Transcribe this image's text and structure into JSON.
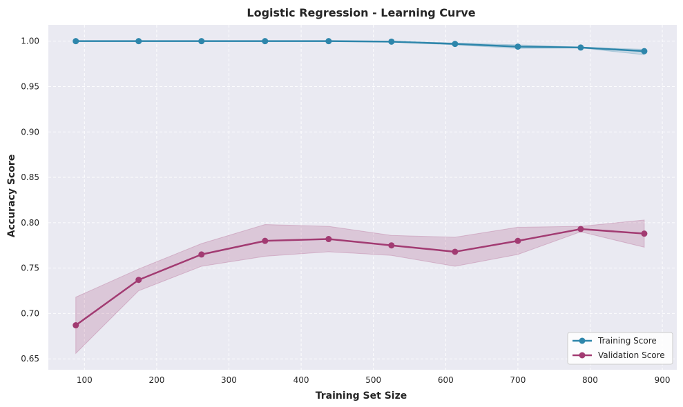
{
  "chart_data": {
    "type": "line",
    "title": "Logistic Regression - Learning Curve",
    "xlabel": "Training Set Size",
    "ylabel": "Accuracy Score",
    "x": [
      88,
      175,
      262,
      350,
      438,
      525,
      613,
      700,
      787,
      875
    ],
    "xlim": [
      50,
      920
    ],
    "ylim": [
      0.638,
      1.018
    ],
    "xticks": [
      100,
      200,
      300,
      400,
      500,
      600,
      700,
      800,
      900
    ],
    "xtick_labels": [
      "100",
      "200",
      "300",
      "400",
      "500",
      "600",
      "700",
      "800",
      "900"
    ],
    "yticks": [
      0.65,
      0.7,
      0.75,
      0.8,
      0.85,
      0.9,
      0.95,
      1.0
    ],
    "ytick_labels": [
      "0.65",
      "0.70",
      "0.75",
      "0.80",
      "0.85",
      "0.90",
      "0.95",
      "1.00"
    ],
    "grid": true,
    "legend_position": "bottom-right",
    "background": "#eaeaf2",
    "series": [
      {
        "name": "Training Score",
        "color": "#2e86ab",
        "values": [
          1.0,
          1.0,
          1.0,
          1.0,
          1.0,
          0.9995,
          0.997,
          0.994,
          0.993,
          0.989
        ],
        "band_upper": [
          1.0,
          1.0,
          1.0,
          1.0,
          1.0,
          1.0,
          0.998,
          0.996,
          0.9935,
          0.991
        ],
        "band_lower": [
          1.0,
          1.0,
          1.0,
          1.0,
          1.0,
          0.999,
          0.996,
          0.992,
          0.9925,
          0.985
        ]
      },
      {
        "name": "Validation Score",
        "color": "#a23b72",
        "values": [
          0.687,
          0.737,
          0.765,
          0.78,
          0.782,
          0.775,
          0.768,
          0.78,
          0.793,
          0.788
        ],
        "band_upper": [
          0.718,
          0.749,
          0.777,
          0.798,
          0.796,
          0.786,
          0.784,
          0.795,
          0.796,
          0.803
        ],
        "band_lower": [
          0.656,
          0.725,
          0.752,
          0.763,
          0.768,
          0.764,
          0.752,
          0.765,
          0.79,
          0.773
        ]
      }
    ]
  }
}
